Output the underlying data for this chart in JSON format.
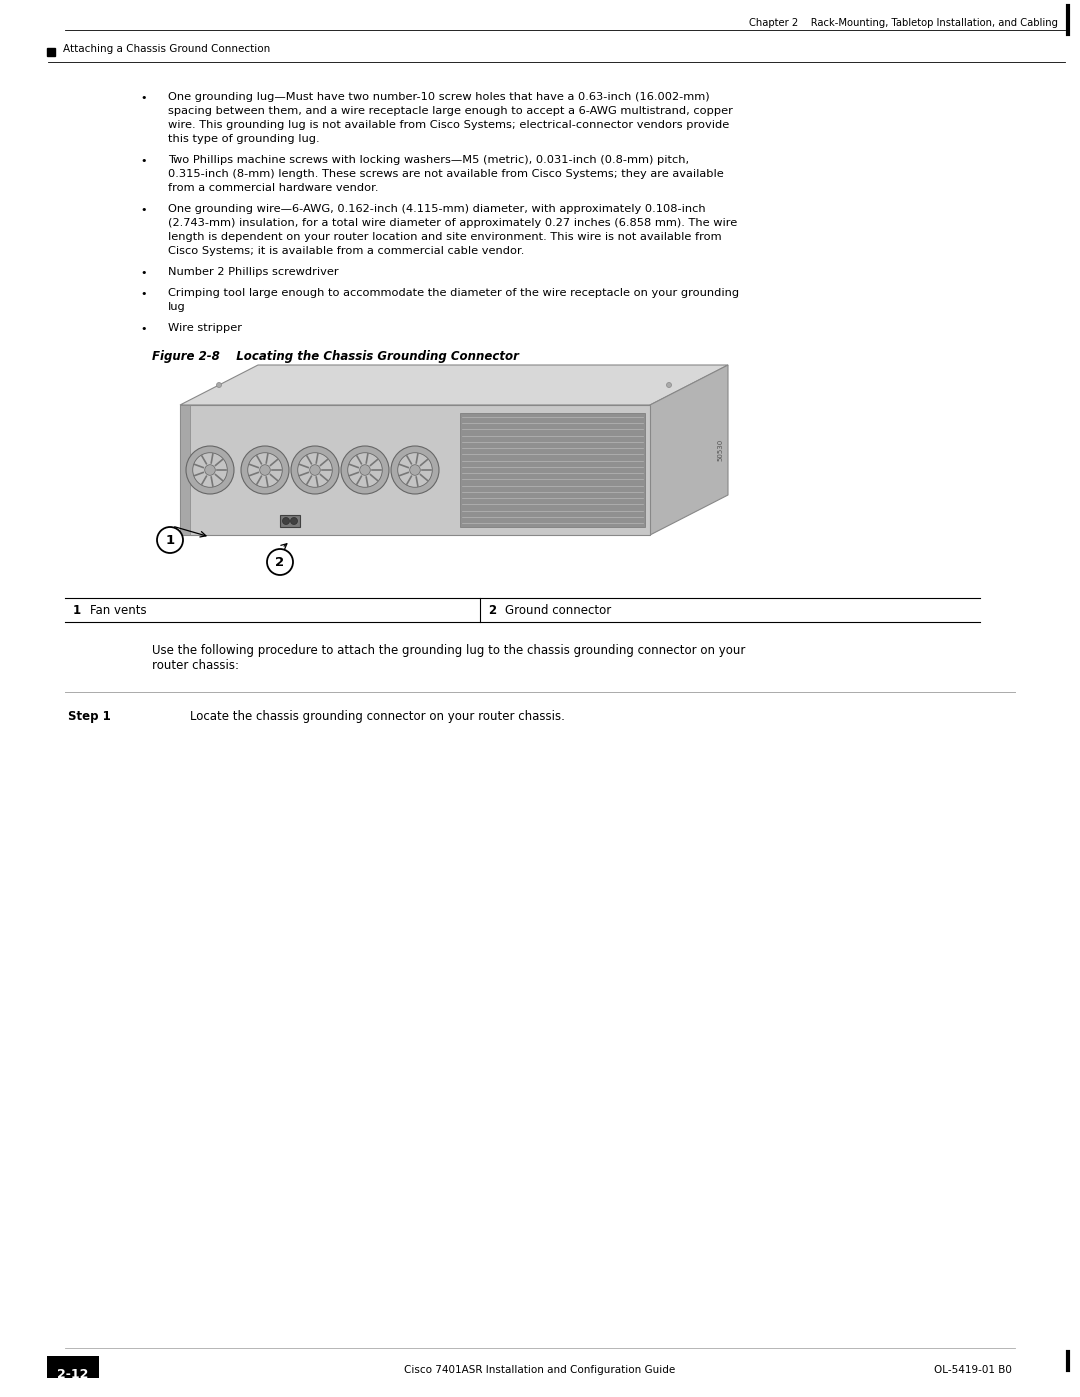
{
  "bg_color": "#ffffff",
  "chapter_text": "Chapter 2    Rack-Mounting, Tabletop Installation, and Cabling",
  "section_text": "Attaching a Chassis Ground Connection",
  "figure_caption": "Figure 2-8    Locating the Chassis Grounding Connector",
  "footer_page": "2-12",
  "footer_right": "OL-5419-01 B0",
  "footer_guide": "Cisco 7401ASR Installation and Configuration Guide",
  "bullet_items": [
    "One grounding lug—Must have two number-10 screw holes that have a 0.63-inch (16.002-mm)\nspacing between them, and a wire receptacle large enough to accept a 6-AWG multistrand, copper\nwire. This grounding lug is not available from Cisco Systems; electrical-connector vendors provide\nthis type of grounding lug.",
    "Two Phillips machine screws with locking washers—M5 (metric), 0.031-inch (0.8-mm) pitch,\n0.315-inch (8-mm) length. These screws are not available from Cisco Systems; they are available\nfrom a commercial hardware vendor.",
    "One grounding wire—6-AWG, 0.162-inch (4.115-mm) diameter, with approximately 0.108-inch\n(2.743-mm) insulation, for a total wire diameter of approximately 0.27 inches (6.858 mm). The wire\nlength is dependent on your router location and site environment. This wire is not available from\nCisco Systems; it is available from a commercial cable vendor.",
    "Number 2 Phillips screwdriver",
    "Crimping tool large enough to accommodate the diameter of the wire receptacle on your grounding\nlug",
    "Wire stripper"
  ],
  "table_col1_label": "1",
  "table_col1_text": "Fan vents",
  "table_col2_label": "2",
  "table_col2_text": "Ground connector",
  "step_label": "Step 1",
  "step_text": "Locate the chassis grounding connector on your router chassis.",
  "use_text_line1": "Use the following procedure to attach the grounding lug to the chassis grounding connector on your",
  "use_text_line2": "router chassis:"
}
